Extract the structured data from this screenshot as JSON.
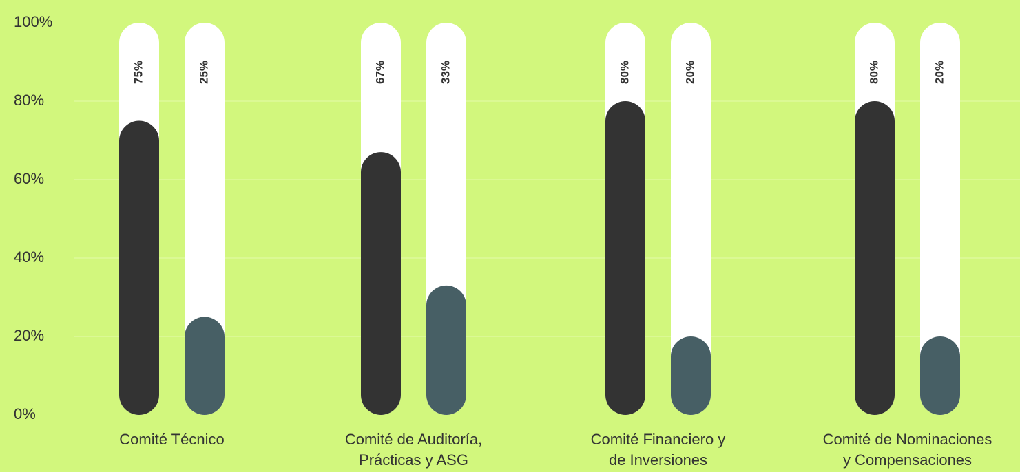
{
  "chart_data": {
    "type": "bar",
    "categories": [
      [
        "Comité Técnico"
      ],
      [
        "Comité de Auditoría,",
        "Prácticas y ASG"
      ],
      [
        "Comité Financiero y",
        "de Inversiones"
      ],
      [
        "Comité de Nominaciones",
        "y Compensaciones"
      ]
    ],
    "series": [
      {
        "color": "#333333",
        "values": [
          75,
          67,
          80,
          80
        ],
        "value_labels": [
          "75%",
          "67%",
          "80%",
          "80%"
        ]
      },
      {
        "color": "#475f65",
        "values": [
          25,
          33,
          20,
          20
        ],
        "value_labels": [
          "25%",
          "33%",
          "20%",
          "20%"
        ]
      }
    ],
    "ylim": [
      0,
      100
    ],
    "yticks": [
      {
        "value": 0,
        "label": "0%"
      },
      {
        "value": 20,
        "label": "20%"
      },
      {
        "value": 40,
        "label": "40%"
      },
      {
        "value": 60,
        "label": "60%"
      },
      {
        "value": 80,
        "label": "80%"
      },
      {
        "value": 100,
        "label": "100%"
      }
    ],
    "grid": true
  }
}
